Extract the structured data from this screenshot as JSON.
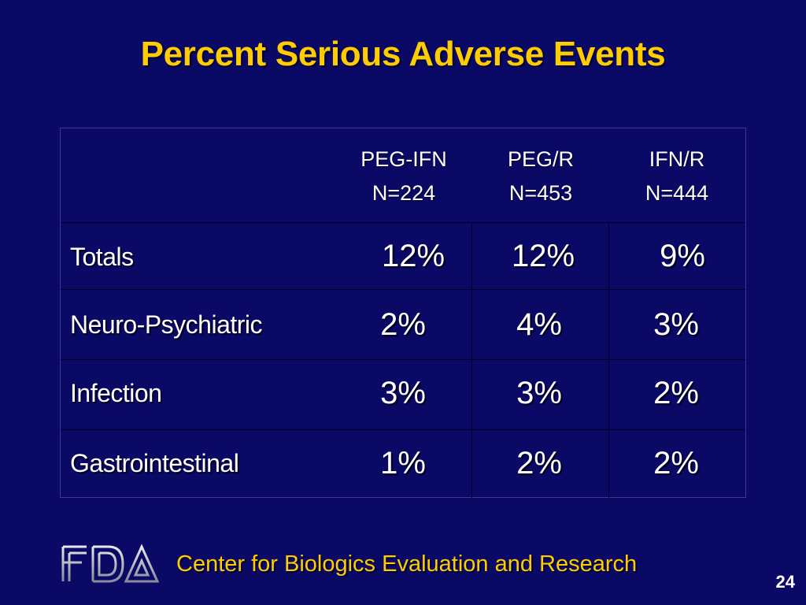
{
  "slide": {
    "title": "Percent Serious Adverse Events",
    "footer": "Center for Biologics Evaluation and Research",
    "page_number": "24",
    "logo_text": "FDA"
  },
  "table": {
    "columns": [
      {
        "name": "PEG-IFN",
        "n": "N=224"
      },
      {
        "name": "PEG/R",
        "n": "N=453"
      },
      {
        "name": "IFN/R",
        "n": "N=444"
      }
    ],
    "rows": [
      {
        "label": "Totals",
        "values": [
          "12%",
          "12%",
          "9%"
        ]
      },
      {
        "label": "Neuro-Psychiatric",
        "values": [
          "2%",
          "4%",
          "3%"
        ]
      },
      {
        "label": "Infection",
        "values": [
          "3%",
          "3%",
          "2%"
        ]
      },
      {
        "label": "Gastrointestinal",
        "values": [
          "1%",
          "2%",
          "2%"
        ]
      }
    ]
  },
  "colors": {
    "background": "#0a0a66",
    "title": "#ffcc00",
    "text": "#ffffff"
  }
}
